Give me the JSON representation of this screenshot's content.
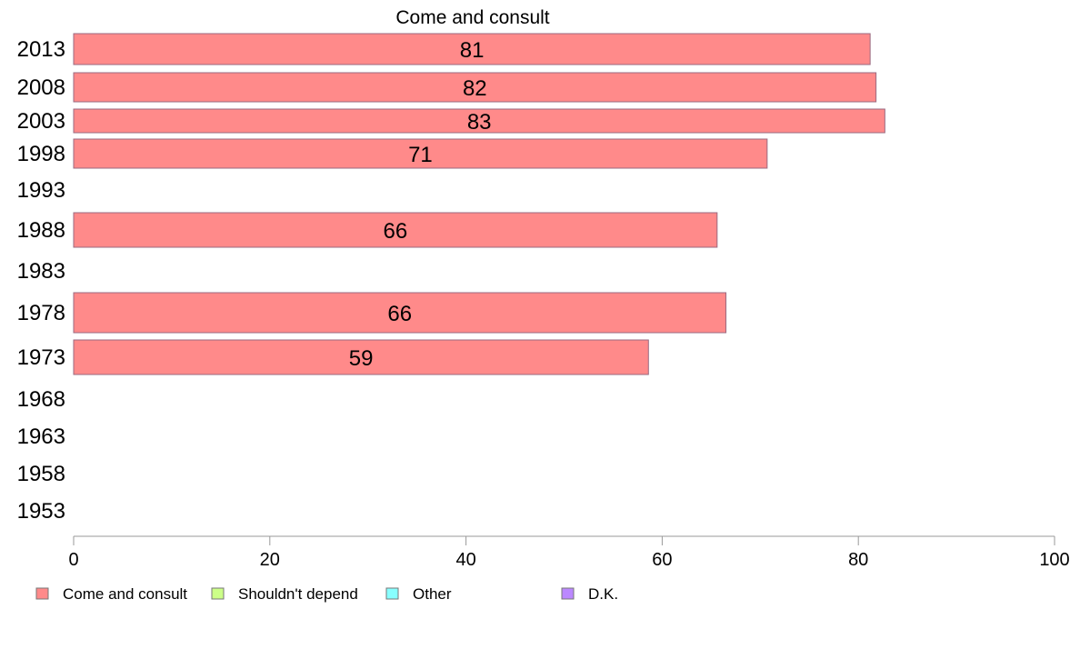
{
  "chart_data": {
    "type": "bar",
    "orientation": "horizontal",
    "title": "Come and consult",
    "categories": [
      "2013",
      "2008",
      "2003",
      "1998",
      "1993",
      "1988",
      "1983",
      "1978",
      "1973",
      "1968",
      "1963",
      "1958",
      "1953"
    ],
    "series": [
      {
        "name": "Come and consult",
        "color": "#ff8a8a",
        "values": [
          81.2,
          81.8,
          82.7,
          70.7,
          null,
          65.6,
          null,
          66.5,
          58.6,
          null,
          null,
          null,
          null
        ],
        "labels": [
          "81",
          "82",
          "83",
          "71",
          "",
          "66",
          "",
          "66",
          "59",
          "",
          "",
          "",
          ""
        ]
      }
    ],
    "xlim": [
      0,
      100
    ],
    "xticks": [
      "0",
      "20",
      "40",
      "60",
      "80",
      "100"
    ],
    "legend": {
      "position": "bottom-left",
      "items": [
        {
          "label": "Come and consult",
          "color": "#ff8a8a"
        },
        {
          "label": "Shouldn't depend",
          "color": "#ccff88"
        },
        {
          "label": "Other",
          "color": "#88ffff"
        },
        {
          "label": "D.K.",
          "color": "#bb88ff"
        }
      ]
    },
    "grid": false
  }
}
